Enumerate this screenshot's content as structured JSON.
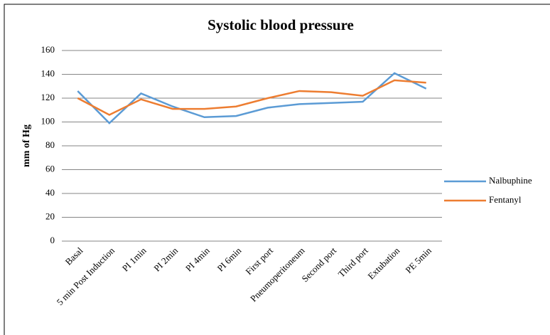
{
  "chart_data": {
    "type": "line",
    "title": "Systolic blood pressure",
    "ylabel": "mm of Hg",
    "categories": [
      "Basal",
      "5 min Post Induction",
      "PI 1min",
      "PI 2min",
      "PI 4min",
      "PI 6min",
      "First port",
      "Pneumoperitoneum",
      "Second port",
      "Third port",
      "Extubation",
      "PE 5min"
    ],
    "series": [
      {
        "name": "Nalbuphine",
        "color": "#5b9bd5",
        "values": [
          126,
          99,
          124,
          113,
          104,
          105,
          112,
          115,
          116,
          117,
          141,
          128
        ]
      },
      {
        "name": "Fentanyl",
        "color": "#ed7d31",
        "values": [
          120,
          106,
          119,
          111,
          111,
          113,
          120,
          126,
          125,
          122,
          135,
          133
        ]
      }
    ],
    "ylim": [
      0,
      160
    ],
    "yticks": [
      0,
      20,
      40,
      60,
      80,
      100,
      120,
      140,
      160
    ],
    "grid": true,
    "legend": "right"
  }
}
